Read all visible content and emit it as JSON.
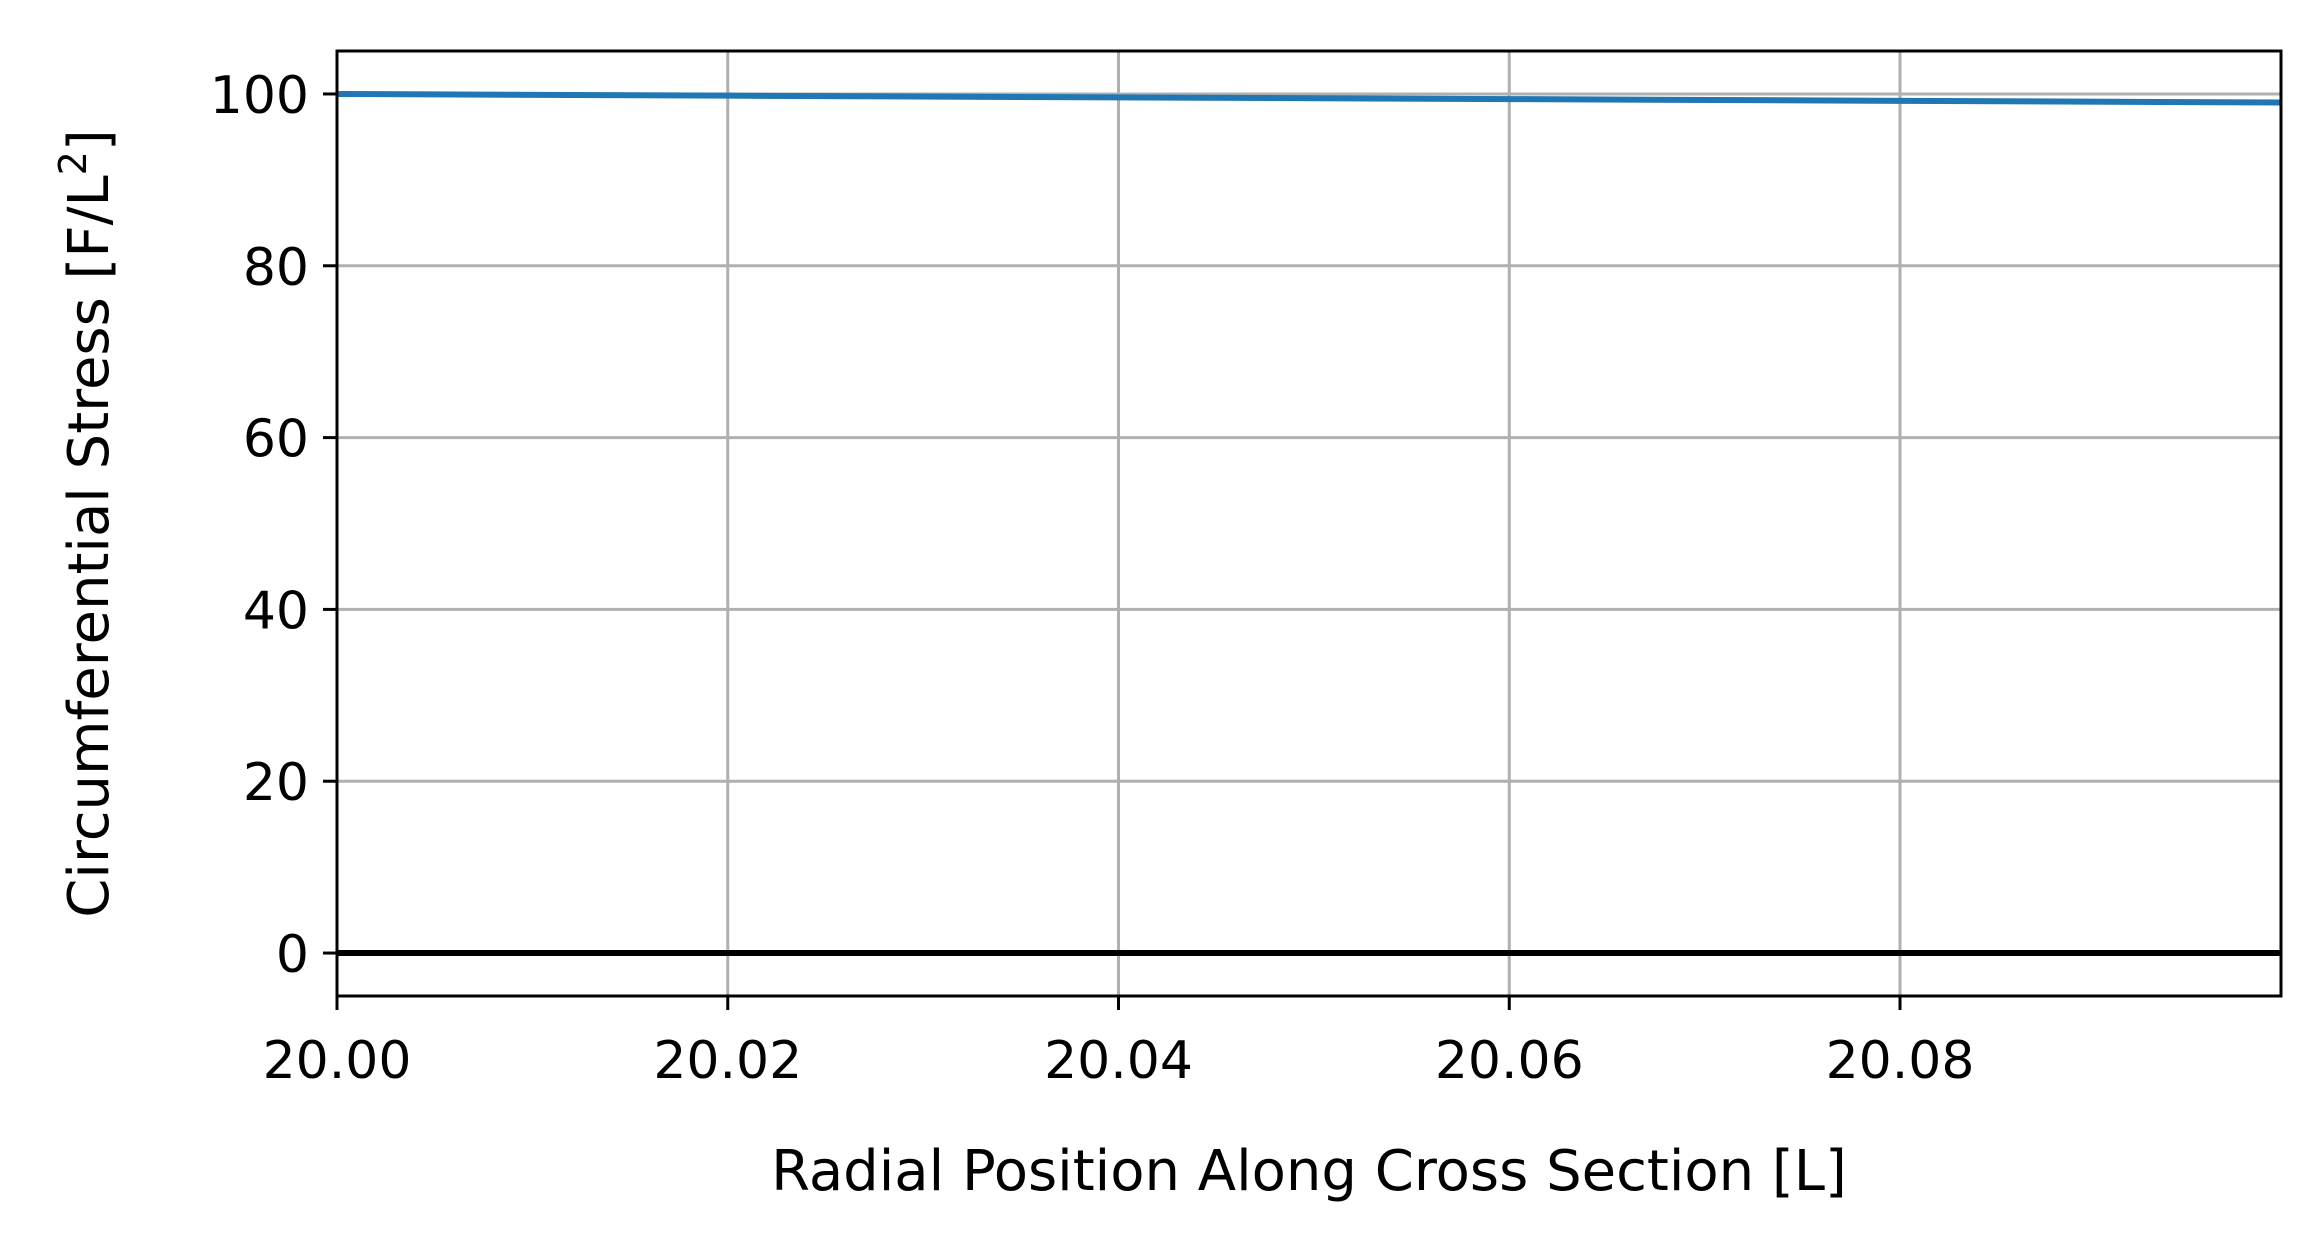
{
  "chart_data": {
    "type": "line",
    "title": "",
    "xlabel": "Radial Position Along Cross Section [L]",
    "ylabel": "Circumferential Stress [F/L",
    "ylabel_sup": "2",
    "ylabel_tail": "]",
    "xlim": [
      20.0,
      20.0995
    ],
    "ylim": [
      -5,
      105
    ],
    "xticks": [
      20.0,
      20.02,
      20.04,
      20.06,
      20.08
    ],
    "xtick_labels": [
      "20.00",
      "20.02",
      "20.04",
      "20.06",
      "20.08"
    ],
    "yticks": [
      0,
      20,
      40,
      60,
      80,
      100
    ],
    "ytick_labels": [
      "0",
      "20",
      "40",
      "60",
      "80",
      "100"
    ],
    "grid": true,
    "series": [
      {
        "color": "#1f77b4",
        "x": [
          20.0,
          20.02,
          20.04,
          20.06,
          20.08,
          20.0995
        ],
        "y": [
          100.0,
          99.8,
          99.6,
          99.4,
          99.2,
          99.0
        ]
      }
    ],
    "reference_line": {
      "y": 0,
      "color": "#000000"
    }
  }
}
